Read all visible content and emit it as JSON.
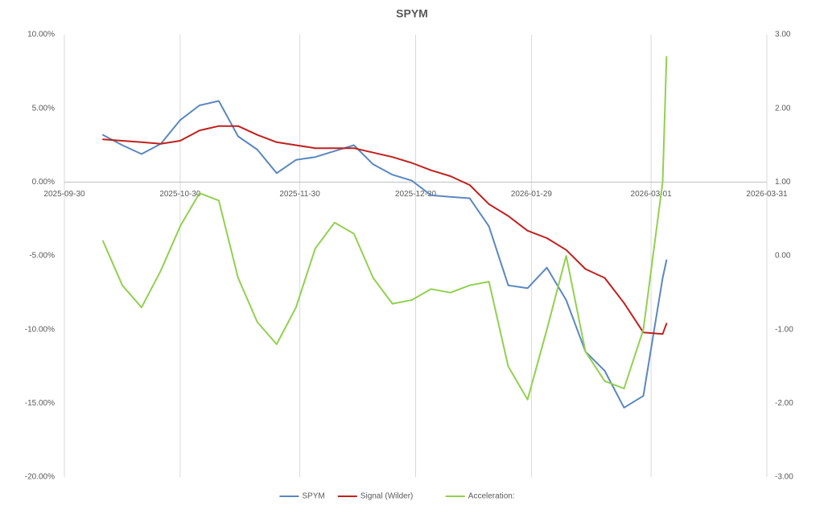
{
  "chart_data": {
    "type": "line",
    "title": "SPYM",
    "x": [
      "2025-10-10",
      "2025-10-15",
      "2025-10-20",
      "2025-10-25",
      "2025-10-30",
      "2025-11-04",
      "2025-11-09",
      "2025-11-14",
      "2025-11-19",
      "2025-11-24",
      "2025-11-29",
      "2025-12-04",
      "2025-12-09",
      "2025-12-14",
      "2025-12-19",
      "2025-12-24",
      "2025-12-29",
      "2026-01-03",
      "2026-01-08",
      "2026-01-13",
      "2026-01-18",
      "2026-01-23",
      "2026-01-28",
      "2026-02-02",
      "2026-02-07",
      "2026-02-12",
      "2026-02-17",
      "2026-02-22",
      "2026-02-27",
      "2026-03-04",
      "2026-03-05"
    ],
    "series": [
      {
        "name": "SPYM",
        "color": "#5b87c0",
        "values": [
          3.2,
          2.5,
          1.9,
          2.6,
          4.2,
          5.2,
          5.5,
          3.1,
          2.2,
          0.6,
          1.5,
          1.7,
          2.1,
          2.5,
          1.2,
          0.5,
          0.1,
          -0.9,
          -1.0,
          -1.1,
          -3.0,
          -7.0,
          -7.2,
          -5.8,
          -8.0,
          -11.5,
          -12.8,
          -15.3,
          -14.5,
          -6.5,
          -5.3
        ]
      },
      {
        "name": "Signal (Wilder)",
        "color": "#c0201e",
        "values": [
          2.9,
          2.8,
          2.7,
          2.6,
          2.8,
          3.5,
          3.8,
          3.8,
          3.2,
          2.7,
          2.5,
          2.3,
          2.3,
          2.3,
          2.0,
          1.7,
          1.3,
          0.8,
          0.4,
          -0.2,
          -1.5,
          -2.3,
          -3.3,
          -3.8,
          -4.6,
          -5.9,
          -6.5,
          -8.2,
          -10.2,
          -10.3,
          -9.6
        ]
      },
      {
        "name": "Acceleration:",
        "color": "#92d050",
        "axis": "y2",
        "values": [
          0.2,
          -0.4,
          -0.7,
          -0.2,
          0.4,
          0.85,
          0.75,
          -0.3,
          -0.9,
          -1.2,
          -0.7,
          0.1,
          0.45,
          0.3,
          -0.3,
          -0.65,
          -0.6,
          -0.45,
          -0.5,
          -0.4,
          -0.35,
          -1.5,
          -1.95,
          -1.0,
          0.0,
          -1.3,
          -1.7,
          -1.8,
          -1.0,
          1.0,
          2.7
        ]
      }
    ],
    "xlim": [
      "2025-09-30",
      "2026-03-31"
    ],
    "xticks": [
      "2025-09-30",
      "2025-10-30",
      "2025-11-30",
      "2025-12-30",
      "2026-01-29",
      "2026-03-01",
      "2026-03-31"
    ],
    "ylim": [
      -20,
      10
    ],
    "yticks": [
      {
        "value": -20,
        "label": "-20.00%"
      },
      {
        "value": -15,
        "label": "-15.00%"
      },
      {
        "value": -10,
        "label": "-10.00%"
      },
      {
        "value": -5,
        "label": "-5.00%"
      },
      {
        "value": 0,
        "label": "0.00%"
      },
      {
        "value": 5,
        "label": "5.00%"
      },
      {
        "value": 10,
        "label": "10.00%"
      }
    ],
    "y2lim": [
      -3,
      3
    ],
    "y2ticks": [
      {
        "value": -3,
        "label": "-3.00"
      },
      {
        "value": -2,
        "label": "-2.00"
      },
      {
        "value": -1,
        "label": "-1.00"
      },
      {
        "value": 0,
        "label": "0.00"
      },
      {
        "value": 1,
        "label": "1.00"
      },
      {
        "value": 2,
        "label": "2.00"
      },
      {
        "value": 3,
        "label": "3.00"
      }
    ],
    "grid": "x",
    "legend": "bottom"
  }
}
